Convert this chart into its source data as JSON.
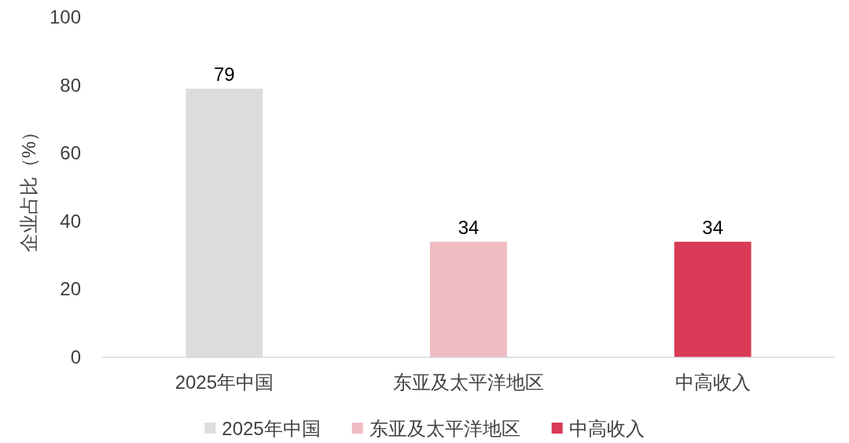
{
  "chart_data": {
    "type": "bar",
    "ylabel": "企业占比（%）",
    "categories": [
      "2025年中国",
      "东亚及太平洋地区",
      "中高收入"
    ],
    "series": [
      {
        "name": "2025年中国",
        "color": "#dcdcdc",
        "values": [
          79,
          null,
          null
        ]
      },
      {
        "name": "东亚及太平洋地区",
        "color": "#f0bcc4",
        "values": [
          null,
          34,
          null
        ]
      },
      {
        "name": "中高收入",
        "color": "#d93a55",
        "values": [
          null,
          null,
          34
        ]
      }
    ],
    "ylim": [
      0,
      100
    ],
    "yticks": [
      0,
      20,
      40,
      60,
      80,
      100
    ],
    "data_labels": true,
    "legend": "bottom"
  }
}
